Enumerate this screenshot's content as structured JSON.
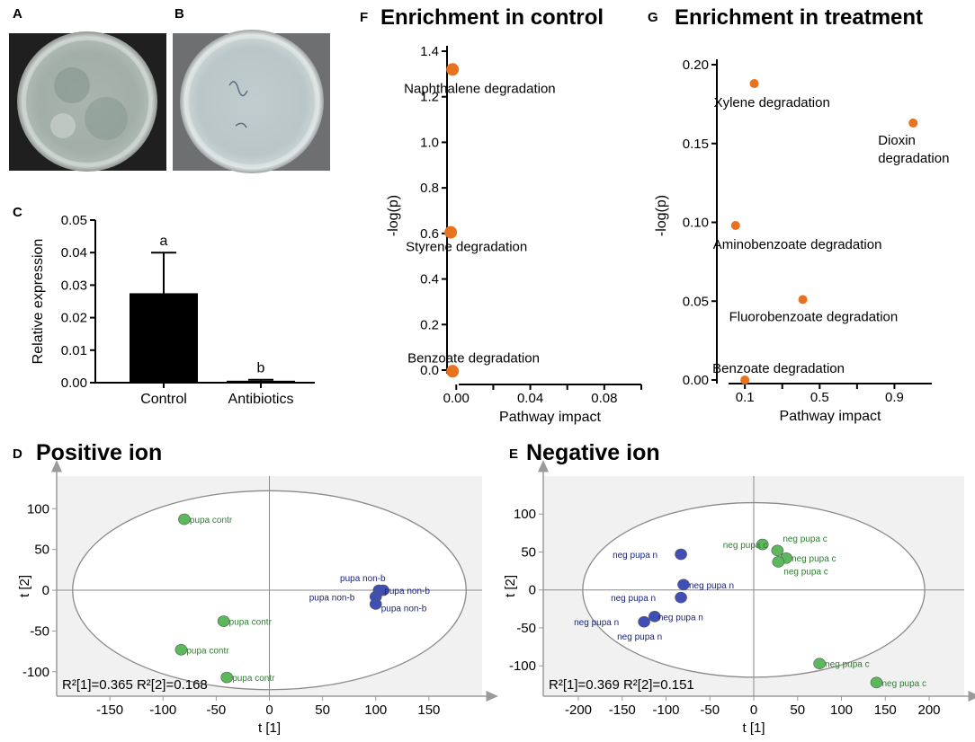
{
  "panels": {
    "A": {
      "letter": "A",
      "photo": "petri-dish-with-growth"
    },
    "B": {
      "letter": "B",
      "photo": "petri-dish-clear"
    },
    "C": {
      "letter": "C"
    },
    "D": {
      "letter": "D"
    },
    "E": {
      "letter": "E"
    },
    "F": {
      "letter": "F"
    },
    "G": {
      "letter": "G"
    }
  },
  "chart_data": [
    {
      "id": "C",
      "type": "bar",
      "title": "",
      "xlabel": "",
      "ylabel": "Relative expression",
      "ylim": [
        0,
        0.05
      ],
      "yticks": [
        "0.00",
        "0.01",
        "0.02",
        "0.03",
        "0.04",
        "0.05"
      ],
      "categories": [
        "Control",
        "Antibiotics"
      ],
      "values": [
        0.0275,
        0.0006
      ],
      "errors": [
        0.0125,
        0.0003
      ],
      "sig_letters": [
        "a",
        "b"
      ],
      "bar_color": "#000000"
    },
    {
      "id": "F",
      "type": "scatter",
      "title": "Enrichment  in control",
      "xlabel": "Pathway impact",
      "ylabel": "-log(p)",
      "xlim": [
        -0.005,
        0.1
      ],
      "ylim": [
        0,
        1.4
      ],
      "xticks": [
        "0.00",
        "0.04",
        "0.08"
      ],
      "yticks": [
        "0.0",
        "0.2",
        "0.4",
        "0.6",
        "0.8",
        "1.0",
        "1.2",
        "1.4"
      ],
      "marker_color": "#e8731f",
      "points": [
        {
          "x": -0.002,
          "y": 1.32,
          "label": "Naphthalene degradation"
        },
        {
          "x": -0.003,
          "y": 0.605,
          "label": "Styrene degradation"
        },
        {
          "x": -0.002,
          "y": -0.005,
          "label": "Benzoate degradation"
        }
      ]
    },
    {
      "id": "G",
      "type": "scatter",
      "title": "Enrichment  in treatment",
      "xlabel": "Pathway impact",
      "ylabel": "-log(p)",
      "xlim": [
        -0.05,
        1.1
      ],
      "ylim": [
        0,
        0.2
      ],
      "xticks": [
        "0.1",
        "0.5",
        "0.9"
      ],
      "yticks": [
        "0.00",
        "0.05",
        "0.10",
        "0.15",
        "0.20"
      ],
      "marker_color": "#e8731f",
      "points": [
        {
          "x": 0.15,
          "y": 0.188,
          "label": "Xylene degradation"
        },
        {
          "x": 1.0,
          "y": 0.163,
          "label": "Dioxin\ndegradation"
        },
        {
          "x": 0.05,
          "y": 0.098,
          "label": "Aminobenzoate degradation"
        },
        {
          "x": 0.41,
          "y": 0.051,
          "label": "Fluorobenzoate degradation"
        },
        {
          "x": 0.1,
          "y": 0.0,
          "label": "Benzoate degradation"
        }
      ]
    },
    {
      "id": "D",
      "type": "scatter",
      "title": "Positive ion",
      "xlabel": "t [1]",
      "ylabel": "t [2]",
      "xlim": [
        -200,
        200
      ],
      "ylim": [
        -130,
        140
      ],
      "xticks": [
        -150,
        -100,
        -50,
        0,
        50,
        100,
        150
      ],
      "yticks": [
        100,
        50,
        0,
        -50,
        -100
      ],
      "ellipse": {
        "rx": 185,
        "ry": 122
      },
      "r2_text": "R²[1]=0.365   R²[2]=0.168",
      "group_colors": {
        "green": "#5cb85c",
        "blue": "#3f4fb5"
      },
      "points": [
        {
          "x": -80,
          "y": 87,
          "group": "green",
          "label": "pupa contr"
        },
        {
          "x": -43,
          "y": -38,
          "group": "green",
          "label": "pupa contr"
        },
        {
          "x": -83,
          "y": -73,
          "group": "green",
          "label": "pupa contr"
        },
        {
          "x": -40,
          "y": -107,
          "group": "green",
          "label": "pupa contr"
        },
        {
          "x": 107,
          "y": 0,
          "group": "blue",
          "label": "pupa non-b"
        },
        {
          "x": 103,
          "y": 0,
          "group": "blue",
          "label": "pupa non-b"
        },
        {
          "x": 100,
          "y": -8,
          "group": "blue",
          "label": "pupa non-b"
        },
        {
          "x": 100,
          "y": -17,
          "group": "blue",
          "label": "pupa non-b"
        }
      ]
    },
    {
      "id": "E",
      "type": "scatter",
      "title": "Negative ion",
      "xlabel": "t [1]",
      "ylabel": "t [2]",
      "xlim": [
        -240,
        240
      ],
      "ylim": [
        -140,
        150
      ],
      "xticks": [
        -200,
        -150,
        -100,
        -50,
        0,
        50,
        100,
        150,
        200
      ],
      "yticks": [
        100,
        50,
        0,
        -50,
        -100
      ],
      "ellipse": {
        "rx": 195,
        "ry": 115
      },
      "r2_text": "R²[1]=0.369   R²[2]=0.151",
      "group_colors": {
        "green": "#5cb85c",
        "blue": "#3f4fb5"
      },
      "points": [
        {
          "x": 10,
          "y": 60,
          "group": "green",
          "label": "neg pupa c"
        },
        {
          "x": 27,
          "y": 52,
          "group": "green",
          "label": "neg pupa c"
        },
        {
          "x": 37,
          "y": 42,
          "group": "green",
          "label": "neg pupa c"
        },
        {
          "x": 28,
          "y": 37,
          "group": "green",
          "label": "neg pupa c"
        },
        {
          "x": 75,
          "y": -97,
          "group": "green",
          "label": "neg pupa c"
        },
        {
          "x": 140,
          "y": -122,
          "group": "green",
          "label": "neg pupa c"
        },
        {
          "x": -83,
          "y": 47,
          "group": "blue",
          "label": "neg pupa n"
        },
        {
          "x": -80,
          "y": 7,
          "group": "blue",
          "label": "neg pupa n"
        },
        {
          "x": -83,
          "y": -10,
          "group": "blue",
          "label": "neg pupa n"
        },
        {
          "x": -113,
          "y": -35,
          "group": "blue",
          "label": "neg pupa n"
        },
        {
          "x": -125,
          "y": -42,
          "group": "blue",
          "label": "neg pupa n"
        }
      ]
    }
  ]
}
